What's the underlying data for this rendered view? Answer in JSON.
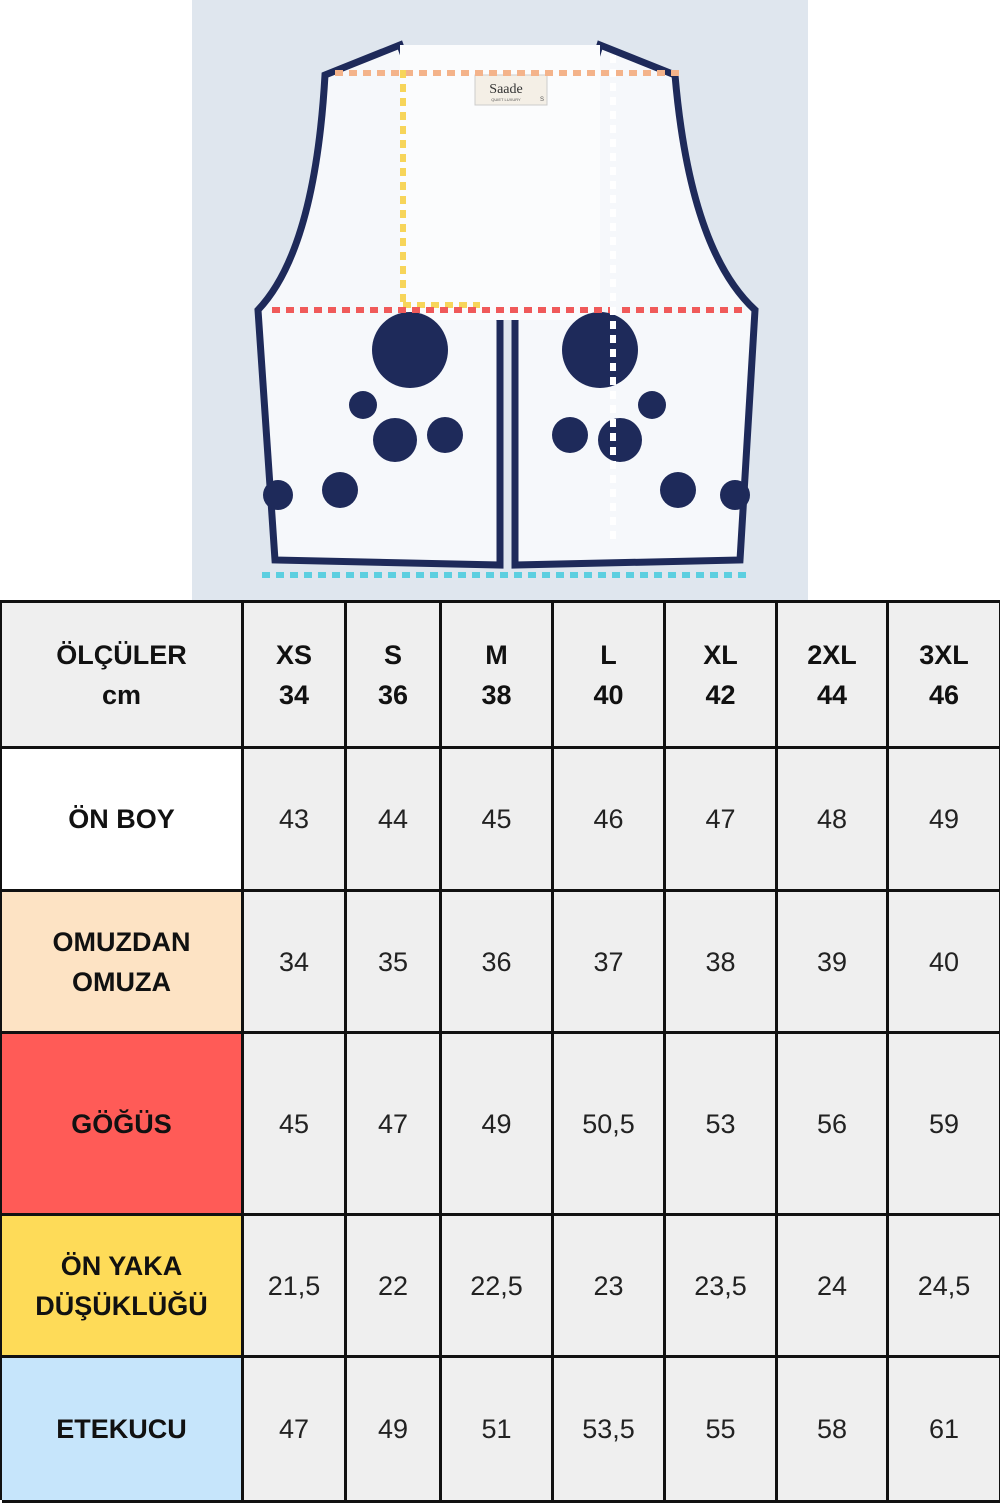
{
  "garment_label": {
    "brand": "Saade",
    "tagline": "QUIET LUXURY",
    "size": "S"
  },
  "table": {
    "header": {
      "label": [
        "ÖLÇÜLER",
        "cm"
      ],
      "sizes": [
        {
          "size": "XS",
          "number": "34"
        },
        {
          "size": "S",
          "number": "36"
        },
        {
          "size": "M",
          "number": "38"
        },
        {
          "size": "L",
          "number": "40"
        },
        {
          "size": "XL",
          "number": "42"
        },
        {
          "size": "2XL",
          "number": "44"
        },
        {
          "size": "3XL",
          "number": "46"
        }
      ]
    },
    "rows": [
      {
        "label": [
          "ÖN BOY"
        ],
        "color": "#ffffff",
        "values": [
          "43",
          "44",
          "45",
          "46",
          "47",
          "48",
          "49"
        ]
      },
      {
        "label": [
          "OMUZDAN",
          "OMUZA"
        ],
        "color": "#fde3c4",
        "values": [
          "34",
          "35",
          "36",
          "37",
          "38",
          "39",
          "40"
        ]
      },
      {
        "label": [
          "GÖĞÜS"
        ],
        "color": "#ff5b57",
        "values": [
          "45",
          "47",
          "49",
          "50,5",
          "53",
          "56",
          "59"
        ]
      },
      {
        "label": [
          "ÖN YAKA",
          "DÜŞÜKLÜĞÜ"
        ],
        "color": "#fedb58",
        "values": [
          "21,5",
          "22",
          "22,5",
          "23",
          "23,5",
          "24",
          "24,5"
        ]
      },
      {
        "label": [
          "ETEKUCU"
        ],
        "color": "#c6e5fb",
        "values": [
          "47",
          "49",
          "51",
          "53,5",
          "55",
          "58",
          "61"
        ]
      }
    ]
  }
}
